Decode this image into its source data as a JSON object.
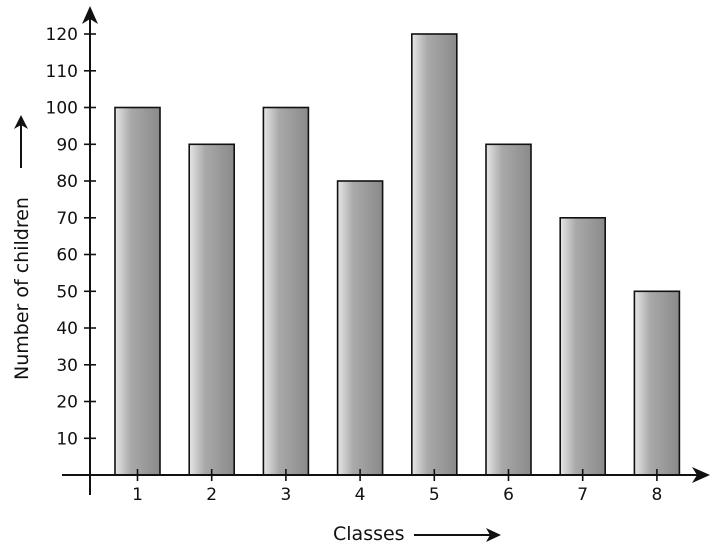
{
  "chart_data": {
    "type": "bar",
    "categories": [
      "1",
      "2",
      "3",
      "4",
      "5",
      "6",
      "7",
      "8"
    ],
    "values": [
      100,
      90,
      100,
      80,
      120,
      90,
      70,
      50
    ],
    "xlabel": "Classes",
    "ylabel": "Number of children",
    "ylim": [
      0,
      120
    ],
    "yticks": [
      10,
      20,
      30,
      40,
      50,
      60,
      70,
      80,
      90,
      100,
      110,
      120
    ],
    "grid": false,
    "legend": "none",
    "colors": {
      "bar_edge": "#111111",
      "bar_light": "#e6e6e6",
      "bar_mid": "#a9a9a9",
      "bar_dark": "#8a8a8a",
      "axis": "#111111"
    }
  }
}
